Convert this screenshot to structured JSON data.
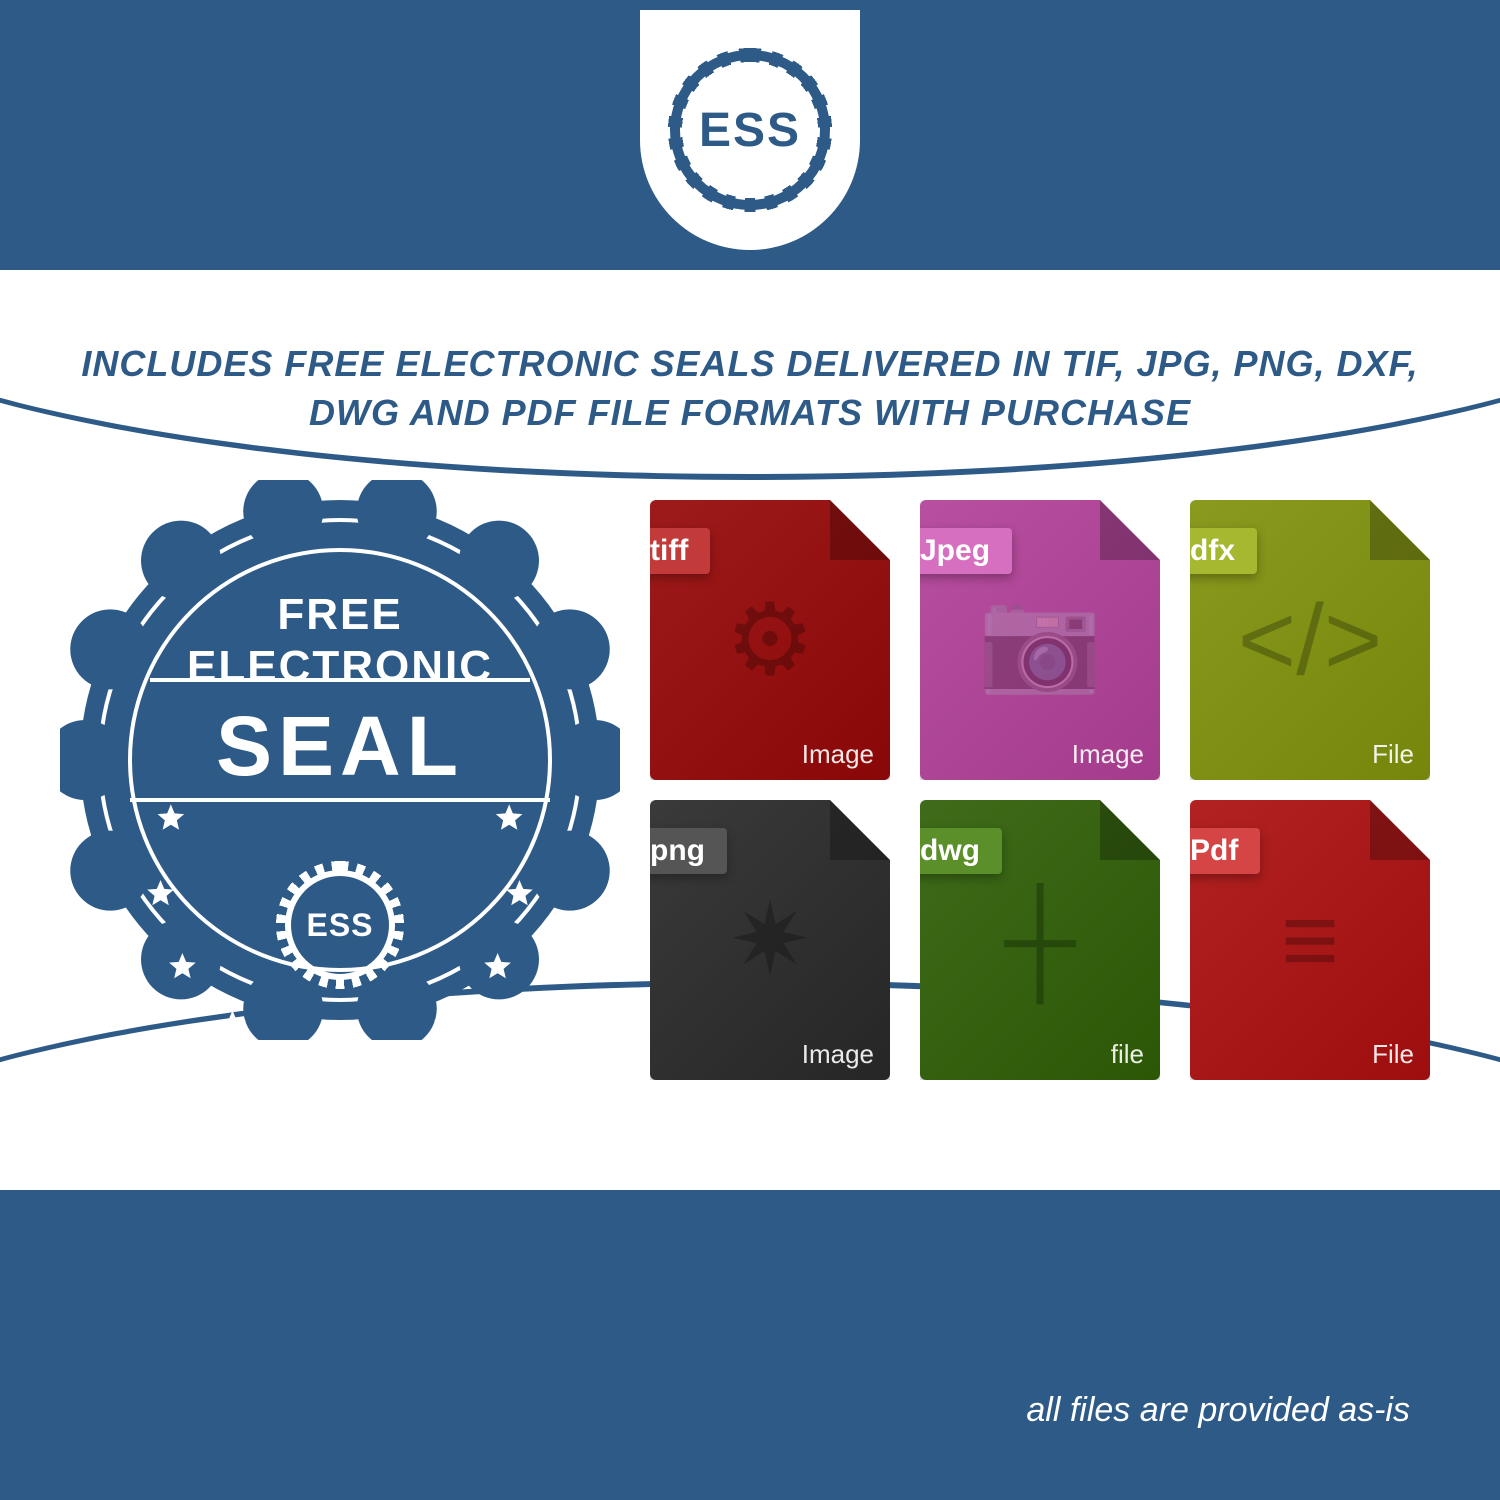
{
  "colors": {
    "brand_blue": "#2e5a87",
    "white": "#ffffff"
  },
  "logo": {
    "text": "ESS"
  },
  "headline": "INCLUDES FREE ELECTRONIC SEALS DELIVERED IN TIF, JPG, PNG, DXF, DWG AND PDF FILE FORMATS WITH PURCHASE",
  "seal": {
    "line1": "FREE",
    "line2": "ELECTRONIC",
    "line3": "SEAL",
    "badge_color": "#2e5a87",
    "logo_text": "ESS",
    "star_count": 10
  },
  "files": [
    {
      "label": "tiff",
      "footer": "Image",
      "bg": "#9e1b1b",
      "tab_bg": "#c23a3a",
      "glyph": "⚙"
    },
    {
      "label": "Jpeg",
      "footer": "Image",
      "bg": "#b84fa0",
      "tab_bg": "#d66fbf",
      "glyph": "📷"
    },
    {
      "label": "dfx",
      "footer": "File",
      "bg": "#8a9a1f",
      "tab_bg": "#a6b82f",
      "glyph": "</>"
    },
    {
      "label": "png",
      "footer": "Image",
      "bg": "#3a3a3a",
      "tab_bg": "#555555",
      "glyph": "✷"
    },
    {
      "label": "dwg",
      "footer": "file",
      "bg": "#3f6b1a",
      "tab_bg": "#5a8f2a",
      "glyph": "┼"
    },
    {
      "label": "Pdf",
      "footer": "File",
      "bg": "#b22222",
      "tab_bg": "#d64545",
      "glyph": "≡"
    }
  ],
  "disclaimer": "all files are provided as-is"
}
